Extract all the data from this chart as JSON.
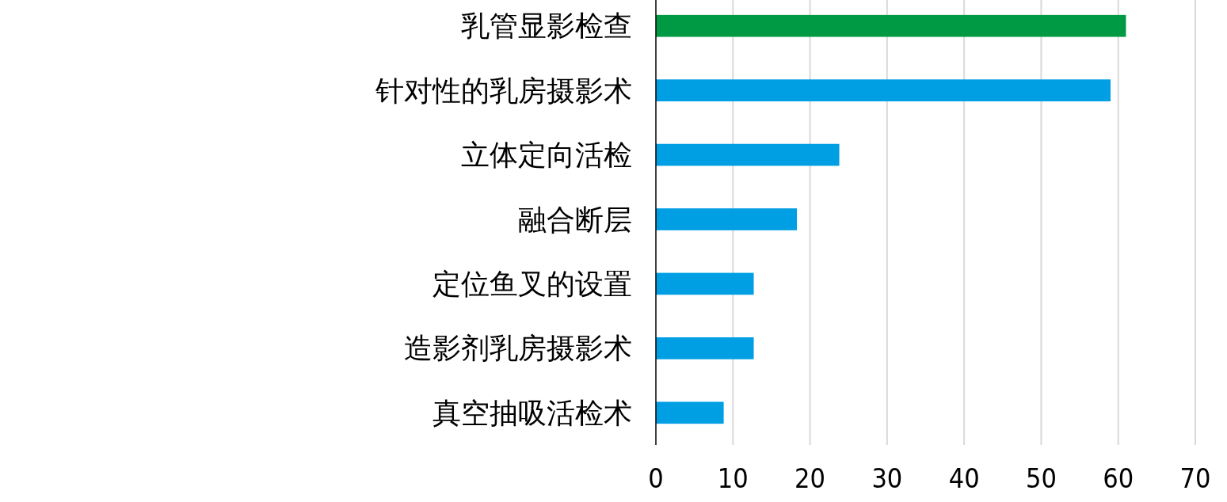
{
  "chart_data": {
    "type": "bar",
    "orientation": "horizontal",
    "categories": [
      "乳管显影检查",
      "针对性的乳房摄影术",
      "立体定向活检",
      "融合断层",
      "定位鱼叉的设置",
      "造影剂乳房摄影术",
      "真空抽吸活检术"
    ],
    "values": [
      61,
      59,
      23.8,
      18.3,
      12.7,
      12.7,
      8.8
    ],
    "colors": [
      "#009a44",
      "#009fe3",
      "#009fe3",
      "#009fe3",
      "#009fe3",
      "#009fe3",
      "#009fe3"
    ],
    "xlim": [
      0,
      70
    ],
    "xticks": [
      0,
      10,
      20,
      30,
      40,
      50,
      60,
      70
    ],
    "grid": "x"
  }
}
